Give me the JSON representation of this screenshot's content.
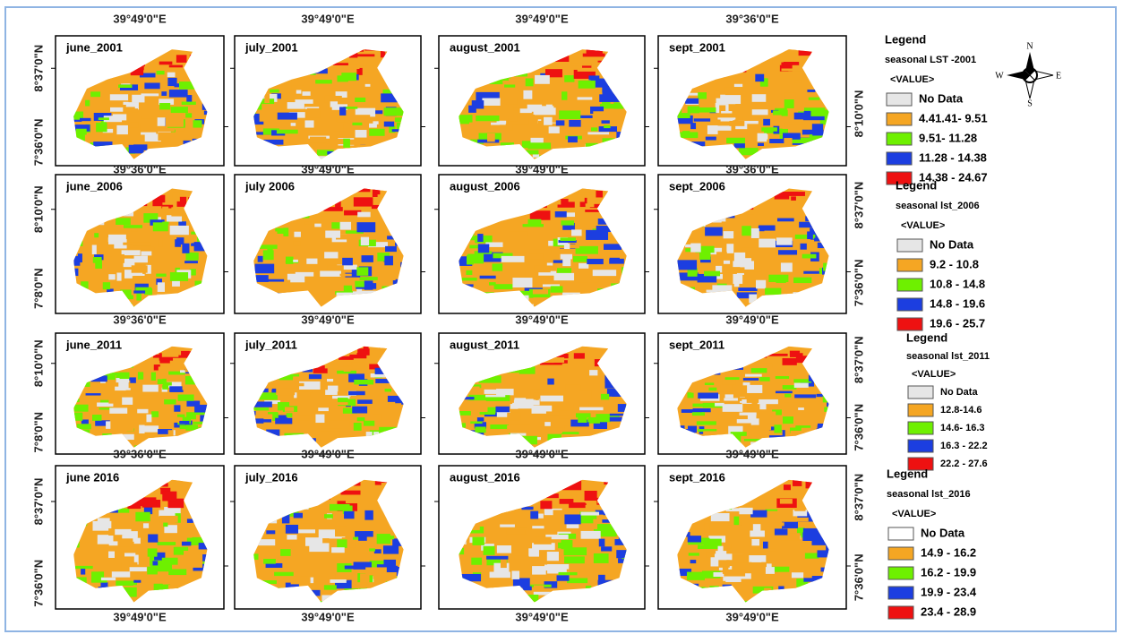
{
  "rows": [
    {
      "panels": [
        "june_2001",
        "july_2001",
        "august_2001",
        "sept_2001"
      ],
      "top": [
        "39°49'0\"E",
        "39°49'0\"E",
        "39°49'0\"E",
        "39°36'0\"E"
      ],
      "left": [
        "8°37'0\"N",
        "7°36'0\"N"
      ],
      "right": [
        "8°10'0\"N"
      ]
    },
    {
      "panels": [
        "june_2006",
        "july 2006",
        "august_2006",
        "sept_2006"
      ],
      "top": [
        "39°36'0\"E",
        "39°49'0\"E",
        "39°49'0\"E",
        "39°36'0\"E"
      ],
      "left": [
        "8°10'0\"N",
        "7°8'0\"N"
      ],
      "right": [
        "8°37'0\"N",
        "7°36'0\"N"
      ]
    },
    {
      "panels": [
        "june_2011",
        "july_2011",
        "august_2011",
        "sept_2011"
      ],
      "top": [
        "39°36'0\"E",
        "39°49'0\"E",
        "39°49'0\"E",
        "39°49'0\"E"
      ],
      "left": [
        "8°10'0\"N",
        "7°8'0\"N"
      ],
      "right": [
        "8°37'0\"N",
        "7°36'0\"N"
      ]
    },
    {
      "panels": [
        "june 2016",
        "july_2016",
        "august_2016",
        "sept_2016"
      ],
      "top": [
        "39°36'0\"E",
        "39°49'0\"E",
        "39°49'0\"E",
        "39°49'0\"E"
      ],
      "left": [
        "8°37'0\"N",
        "7°36'0\"N"
      ],
      "right": [
        "8°37'0\"N",
        "7°36'0\"N"
      ]
    }
  ],
  "bottom": [
    "39°49'0\"E",
    "39°49'0\"E",
    "39°49'0\"E",
    "39°49'0\"E"
  ],
  "compass": {
    "n": "N",
    "s": "S",
    "e": "E",
    "w": "W"
  },
  "legends": [
    {
      "heading": "Legend",
      "title": "seasonal LST -2001",
      "field": "<VALUE>",
      "items": [
        {
          "label": "No Data",
          "color": "#e6e6e6"
        },
        {
          "label": "4.41.41- 9.51",
          "color": "#f5a623"
        },
        {
          "label": "9.51- 11.28",
          "color": "#6ef000"
        },
        {
          "label": "11.28 - 14.38",
          "color": "#1c3ee0"
        },
        {
          "label": "14.38 - 24.67",
          "color": "#ee1111"
        }
      ]
    },
    {
      "heading": "Legend",
      "title": "seasonal lst_2006",
      "field": "<VALUE>",
      "items": [
        {
          "label": "No Data",
          "color": "#e6e6e6"
        },
        {
          "label": "9.2 - 10.8",
          "color": "#f5a623"
        },
        {
          "label": "10.8 - 14.8",
          "color": "#6ef000"
        },
        {
          "label": "14.8 - 19.6",
          "color": "#1c3ee0"
        },
        {
          "label": "19.6 - 25.7",
          "color": "#ee1111"
        }
      ]
    },
    {
      "heading": "Legend",
      "title": "seasonal lst_2011",
      "field": "<VALUE>",
      "items": [
        {
          "label": "No Data",
          "color": "#e6e6e6"
        },
        {
          "label": "12.8-14.6",
          "color": "#f5a623"
        },
        {
          "label": "14.6- 16.3",
          "color": "#6ef000"
        },
        {
          "label": "16.3 - 22.2",
          "color": "#1c3ee0"
        },
        {
          "label": "22.2 - 27.6",
          "color": "#ee1111"
        }
      ]
    },
    {
      "heading": "Legend",
      "title": "seasonal lst_2016",
      "field": "<VALUE>",
      "items": [
        {
          "label": "No Data",
          "color": "#ffffff"
        },
        {
          "label": "14.9 - 16.2",
          "color": "#f5a623"
        },
        {
          "label": "16.2 - 19.9",
          "color": "#6ef000"
        },
        {
          "label": "19.9 - 23.4",
          "color": "#1c3ee0"
        },
        {
          "label": "23.4 - 28.9",
          "color": "#ee1111"
        }
      ]
    }
  ]
}
